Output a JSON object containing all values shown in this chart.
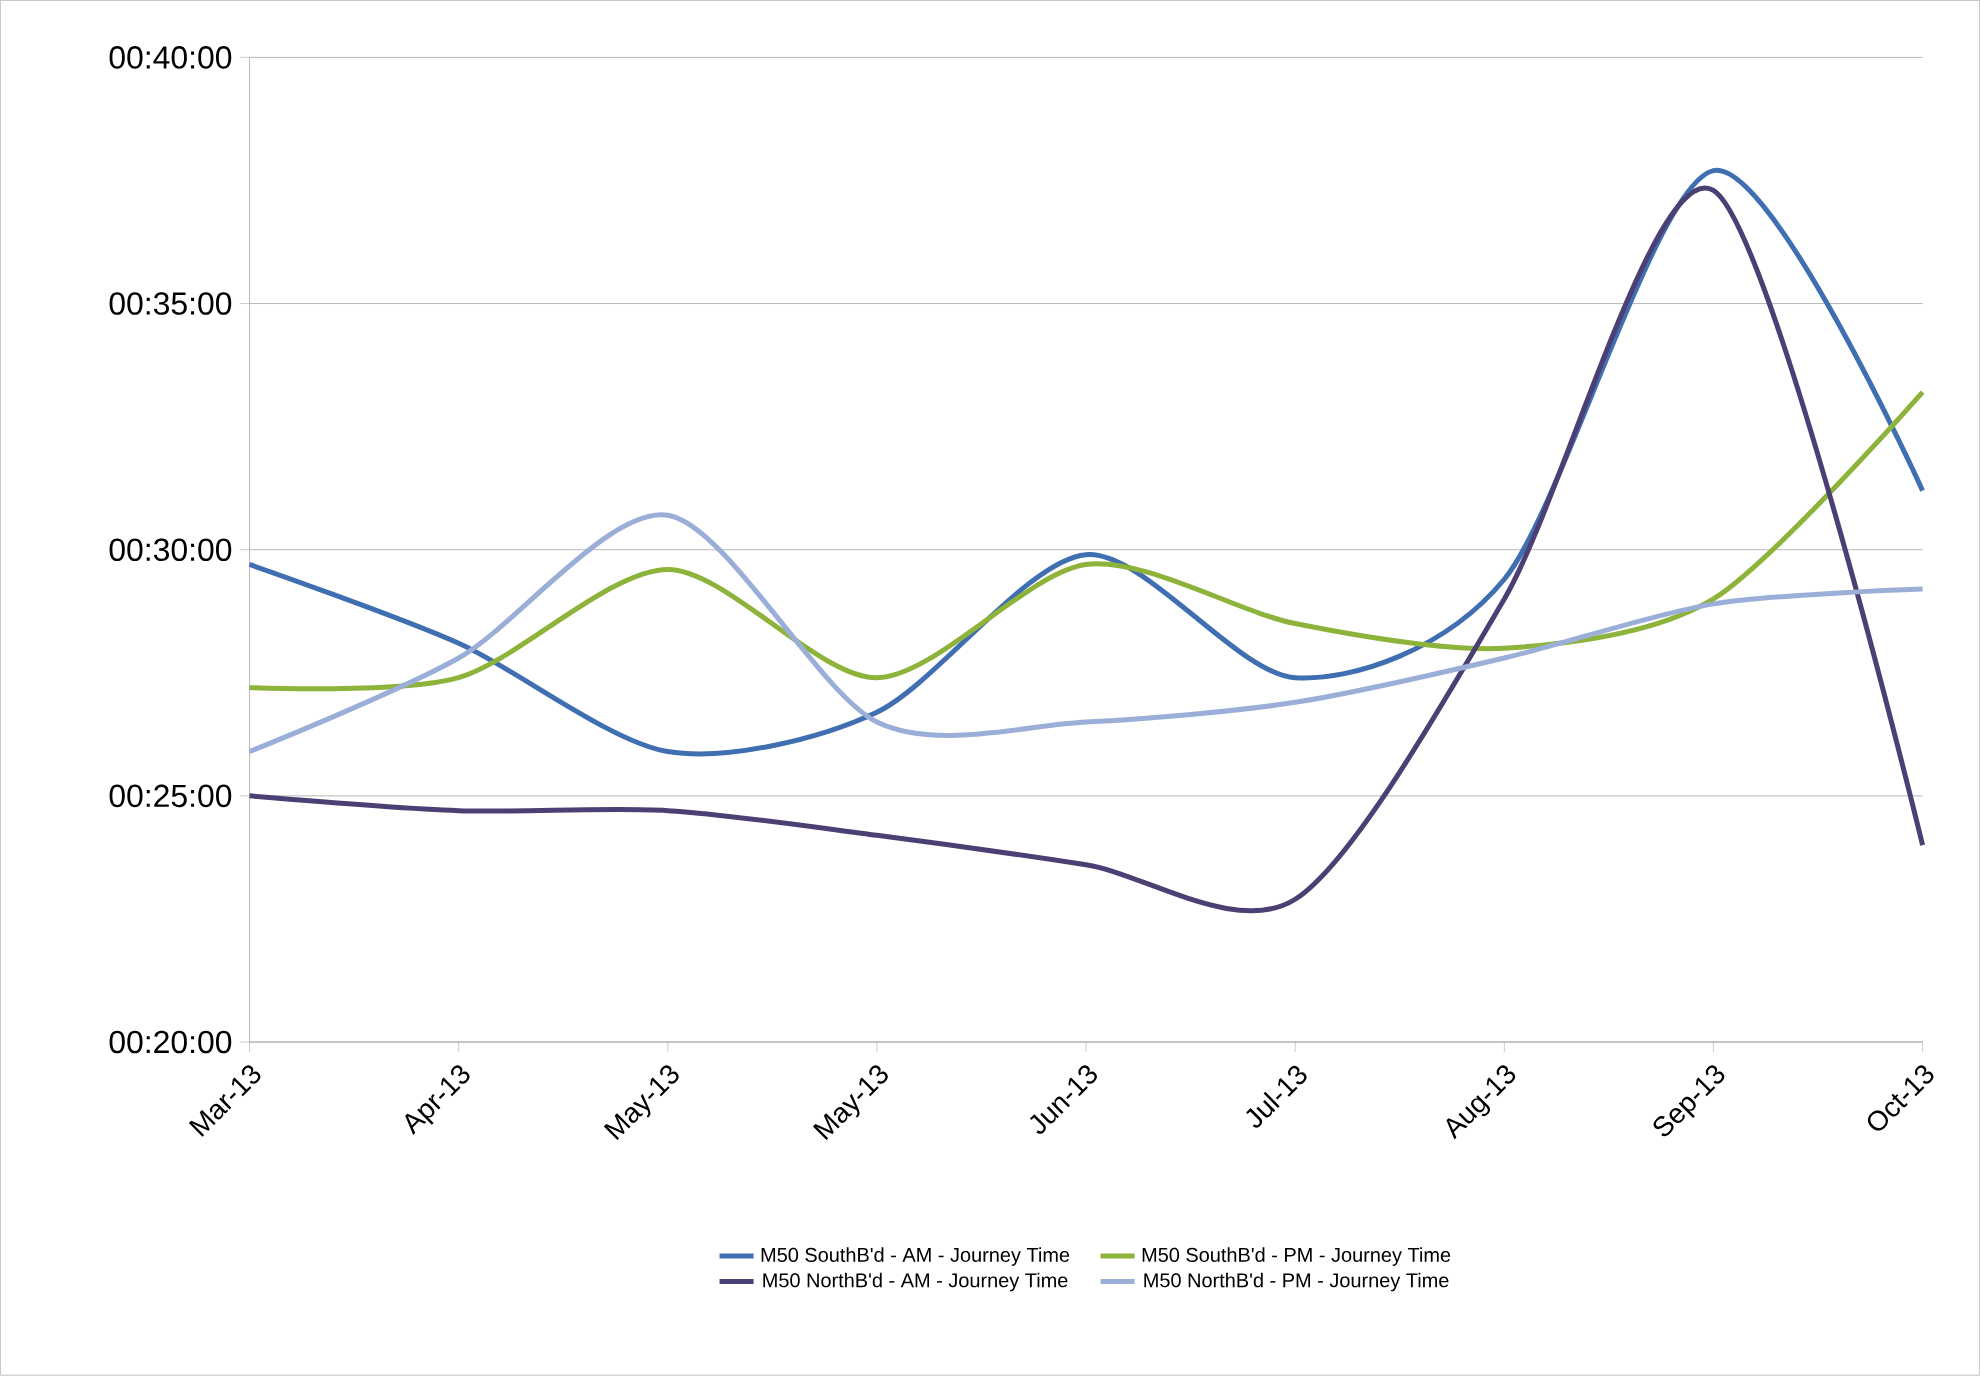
{
  "chart_data": {
    "type": "line",
    "categories": [
      "Mar-13",
      "Apr-13",
      "May-13",
      "May-13",
      "Jun-13",
      "Jul-13",
      "Aug-13",
      "Sep-13",
      "Oct-13"
    ],
    "series": [
      {
        "name": "M50 SouthB'd - AM - Journey Time",
        "color": "#3f6fb0",
        "values": [
          29.7,
          28.1,
          25.9,
          26.7,
          29.9,
          27.4,
          29.4,
          37.7,
          31.2
        ]
      },
      {
        "name": "M50 SouthB'd - PM - Journey Time",
        "color": "#8db33b",
        "values": [
          27.2,
          27.4,
          29.6,
          27.4,
          29.7,
          28.5,
          28.0,
          29.0,
          33.2
        ]
      },
      {
        "name": "M50 NorthB'd - AM - Journey Time",
        "color": "#4b3f73",
        "values": [
          25.0,
          24.7,
          24.7,
          24.2,
          23.6,
          22.9,
          29.0,
          37.3,
          24.0
        ]
      },
      {
        "name": "M50 NorthB'd - PM - Journey Time",
        "color": "#9aaed8",
        "values": [
          25.9,
          27.8,
          30.7,
          26.5,
          26.5,
          26.9,
          27.8,
          28.9,
          29.2
        ]
      }
    ],
    "ylim": [
      20,
      40
    ],
    "yticks": [
      {
        "value": 20,
        "label": "00:20:00"
      },
      {
        "value": 25,
        "label": "00:25:00"
      },
      {
        "value": 30,
        "label": "00:30:00"
      },
      {
        "value": 35,
        "label": "00:35:00"
      },
      {
        "value": 40,
        "label": "00:40:00"
      }
    ],
    "grid": "y",
    "legend": "bottom",
    "marker": "none"
  }
}
